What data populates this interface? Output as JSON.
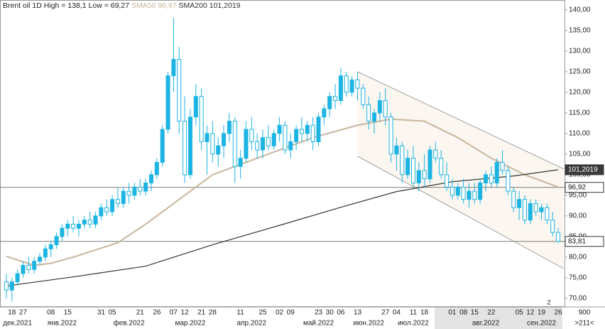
{
  "chart_data": {
    "type": "candlestick",
    "title": "Brent oil 1D High = 138,1 Low = 69,27",
    "categories": [
      null,
      "18",
      null,
      "27",
      null,
      null,
      null,
      null,
      "08",
      null,
      null,
      "15",
      null,
      null,
      null,
      null,
      null,
      "31",
      null,
      "05",
      null,
      null,
      null,
      null,
      "21",
      null,
      null,
      "26",
      null,
      null,
      "07",
      null,
      "12",
      null,
      null,
      "21",
      null,
      "28",
      null,
      null,
      null,
      null,
      "11",
      null,
      null,
      null,
      "25",
      null,
      null,
      "02",
      null,
      "09",
      null,
      null,
      null,
      null,
      "23",
      null,
      "30",
      null,
      "06",
      null,
      null,
      "13",
      null,
      null,
      null,
      null,
      "27",
      null,
      "04",
      null,
      null,
      "11",
      null,
      "18",
      null,
      null,
      null,
      null,
      "01",
      null,
      "08",
      null,
      "15",
      null,
      null,
      "22",
      null,
      null,
      null,
      null,
      "05",
      null,
      "12",
      null,
      "19",
      null,
      null,
      "26"
    ],
    "months": [
      null,
      null,
      "дек.2021",
      null,
      null,
      null,
      null,
      null,
      null,
      null,
      "янв.2022",
      null,
      null,
      null,
      null,
      null,
      null,
      null,
      null,
      null,
      null,
      null,
      "фев.2022",
      null,
      null,
      null,
      null,
      null,
      null,
      null,
      null,
      null,
      null,
      "мар.2022",
      null,
      null,
      null,
      null,
      null,
      null,
      null,
      null,
      null,
      null,
      "апр.2022",
      null,
      null,
      null,
      null,
      null,
      null,
      null,
      null,
      null,
      null,
      null,
      "май.2022",
      null,
      null,
      null,
      null,
      null,
      null,
      null,
      null,
      "июн.2022",
      null,
      null,
      null,
      null,
      null,
      null,
      null,
      "июл.2022",
      null,
      null,
      null,
      null,
      null,
      null,
      null,
      null,
      null,
      null,
      null,
      null,
      "авг.2022",
      null,
      null,
      null,
      null,
      null,
      null,
      null,
      null,
      null,
      "сен.2022",
      null,
      null,
      null
    ],
    "candles": [
      [
        74,
        76,
        70,
        72
      ],
      [
        72,
        75,
        69.27,
        74
      ],
      [
        74,
        77,
        73,
        76
      ],
      [
        76,
        79,
        75,
        78
      ],
      [
        78,
        80,
        76,
        77
      ],
      [
        77,
        80,
        76,
        79
      ],
      [
        79,
        81,
        78,
        80
      ],
      [
        80,
        83,
        79,
        82
      ],
      [
        82,
        84,
        80,
        83
      ],
      [
        83,
        86,
        82,
        85
      ],
      [
        85,
        88,
        84,
        87
      ],
      [
        87,
        89,
        85,
        88
      ],
      [
        88,
        90,
        86,
        87
      ],
      [
        87,
        89,
        85,
        88
      ],
      [
        88,
        90,
        87,
        89
      ],
      [
        89,
        91,
        87,
        88
      ],
      [
        88,
        91,
        87,
        90
      ],
      [
        90,
        93,
        89,
        92
      ],
      [
        92,
        94,
        90,
        91
      ],
      [
        91,
        95,
        90,
        94
      ],
      [
        94,
        97,
        92,
        93
      ],
      [
        93,
        97,
        92,
        96
      ],
      [
        96,
        98,
        93,
        95
      ],
      [
        95,
        98,
        94,
        97
      ],
      [
        97,
        99,
        95,
        96
      ],
      [
        96,
        99,
        95,
        98
      ],
      [
        98,
        101,
        96,
        100
      ],
      [
        100,
        104,
        99,
        103
      ],
      [
        103,
        112,
        102,
        111
      ],
      [
        111,
        125,
        110,
        124
      ],
      [
        124,
        138.1,
        120,
        128
      ],
      [
        128,
        131,
        110,
        113
      ],
      [
        113,
        119,
        98,
        100
      ],
      [
        100,
        116,
        99,
        114
      ],
      [
        114,
        122,
        112,
        119
      ],
      [
        119,
        121,
        106,
        108
      ],
      [
        108,
        112,
        100,
        110
      ],
      [
        110,
        113,
        103,
        105
      ],
      [
        105,
        109,
        102,
        107
      ],
      [
        107,
        112,
        104,
        110
      ],
      [
        110,
        115,
        108,
        113
      ],
      [
        113,
        114,
        98,
        102
      ],
      [
        102,
        106,
        99,
        104
      ],
      [
        104,
        113,
        103,
        111
      ],
      [
        111,
        114,
        106,
        108
      ],
      [
        108,
        110,
        104,
        106
      ],
      [
        106,
        111,
        104,
        109
      ],
      [
        109,
        112,
        106,
        107
      ],
      [
        107,
        111,
        106,
        110
      ],
      [
        110,
        114,
        108,
        112
      ],
      [
        112,
        113,
        105,
        106
      ],
      [
        106,
        110,
        104,
        108
      ],
      [
        108,
        112,
        106,
        111
      ],
      [
        111,
        114,
        108,
        110
      ],
      [
        110,
        113,
        108,
        112
      ],
      [
        112,
        114,
        106,
        108
      ],
      [
        108,
        115,
        107,
        114
      ],
      [
        114,
        117,
        112,
        116
      ],
      [
        116,
        120,
        114,
        119
      ],
      [
        119,
        122,
        116,
        118
      ],
      [
        118,
        126,
        117,
        124
      ],
      [
        124,
        125,
        119,
        120
      ],
      [
        120,
        124,
        119,
        123
      ],
      [
        123,
        125,
        118,
        121
      ],
      [
        121,
        122,
        116,
        117
      ],
      [
        117,
        119,
        111,
        113
      ],
      [
        113,
        116,
        110,
        115
      ],
      [
        115,
        120,
        113,
        118
      ],
      [
        118,
        121,
        112,
        114
      ],
      [
        114,
        115,
        103,
        105
      ],
      [
        105,
        109,
        101,
        107
      ],
      [
        107,
        108,
        98,
        100
      ],
      [
        100,
        106,
        99,
        104
      ],
      [
        104,
        107,
        97,
        98
      ],
      [
        98,
        103,
        96,
        101
      ],
      [
        101,
        105,
        97,
        99
      ],
      [
        99,
        107,
        98,
        106
      ],
      [
        106,
        108,
        103,
        104
      ],
      [
        104,
        106,
        99,
        100
      ],
      [
        100,
        103,
        96,
        97
      ],
      [
        97,
        99,
        94,
        95
      ],
      [
        95,
        98,
        94,
        97
      ],
      [
        97,
        99,
        93,
        94
      ],
      [
        94,
        98,
        92,
        96
      ],
      [
        96,
        98,
        93,
        94
      ],
      [
        94,
        99,
        93,
        98
      ],
      [
        98,
        101,
        96,
        100
      ],
      [
        100,
        102,
        97,
        98
      ],
      [
        98,
        104,
        97,
        103
      ],
      [
        103,
        106,
        100,
        101
      ],
      [
        101,
        102,
        95,
        96
      ],
      [
        96,
        97,
        91,
        92
      ],
      [
        92,
        96,
        89,
        94
      ],
      [
        94,
        95,
        88,
        89
      ],
      [
        89,
        94,
        88,
        93
      ],
      [
        93,
        94,
        90,
        91
      ],
      [
        91,
        93,
        89,
        92
      ],
      [
        92,
        93,
        88,
        89
      ],
      [
        89,
        91,
        85,
        86
      ],
      [
        86,
        87,
        83.5,
        83.81
      ]
    ],
    "color_up": "#1cb4e3",
    "color_down": "#1cb4e3",
    "series": [
      {
        "name": "SMA50 96,97",
        "color": "#c8b49c",
        "x": [
          0,
          5,
          8,
          12,
          20,
          25,
          30,
          37,
          47,
          55,
          63,
          69,
          75,
          81,
          87,
          93,
          99
        ],
        "values": [
          80.2,
          78,
          78.5,
          80,
          83.5,
          88,
          93,
          100,
          105,
          109,
          112,
          113.5,
          113,
          109,
          104,
          100,
          97
        ]
      },
      {
        "name": "SMA200 101,2019",
        "color": "#333333",
        "x": [
          0,
          12,
          25,
          37,
          50,
          60,
          70,
          80,
          91,
          99
        ],
        "values": [
          73,
          75.2,
          77.8,
          83,
          88.1,
          92.1,
          95.9,
          98.3,
          99.7,
          101.2
        ]
      }
    ],
    "trendlines": [
      {
        "x": [
          63,
          100
        ],
        "values": [
          125,
          101.4
        ]
      },
      {
        "x": [
          63,
          100
        ],
        "values": [
          104.5,
          77.2
        ]
      }
    ],
    "trendline_color": "#8a8a8a",
    "price_labels": [
      {
        "value": 101.2019,
        "label": "101,2019",
        "line": false,
        "dark": true
      },
      {
        "value": 96.92,
        "label": "96,92",
        "line": true,
        "dark": false
      },
      {
        "value": 83.81,
        "label": "83,81",
        "line": true,
        "dark": false
      }
    ],
    "ylim": [
      67.9,
      142.4
    ],
    "yticks": [
      {
        "value": 70,
        "label": "70,00"
      },
      {
        "value": 75,
        "label": "75,00"
      },
      {
        "value": 80,
        "label": "80,00"
      },
      {
        "value": 85,
        "label": "85,00"
      },
      {
        "value": 90,
        "label": "90,00"
      },
      {
        "value": 95,
        "label": "95,00"
      },
      {
        "value": 100,
        "label": "100,00"
      },
      {
        "value": 105,
        "label": "105,00"
      },
      {
        "value": 110,
        "label": "110,00"
      },
      {
        "value": 115,
        "label": "115,00"
      },
      {
        "value": 120,
        "label": "120,00"
      },
      {
        "value": 125,
        "label": "125,00"
      },
      {
        "value": 130,
        "label": "130,00"
      },
      {
        "value": 135,
        "label": "135,00"
      },
      {
        "value": 140,
        "label": "140,00"
      }
    ],
    "zoom_label": "900",
    "range_label": ">211<",
    "pane_label": "2"
  }
}
